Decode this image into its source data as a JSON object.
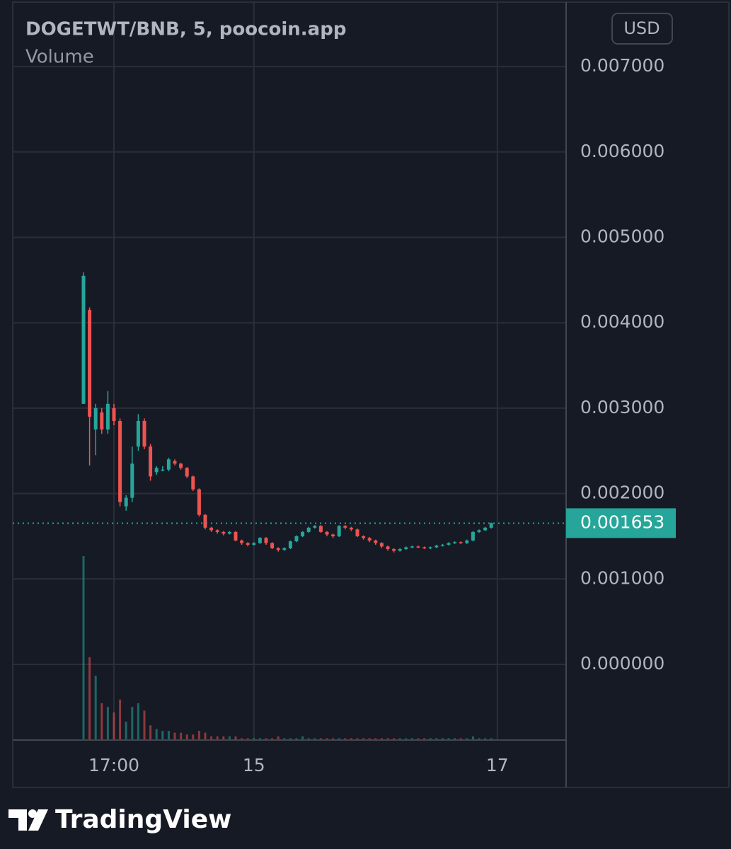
{
  "chart_data": {
    "type": "candlestick",
    "title": "DOGETWT/BNB, 5, poocoin.app",
    "currency": "USD",
    "brand": "TradingView",
    "colors": {
      "up": "#26a69a",
      "down": "#ef5350"
    },
    "grid": true,
    "categories": [
      null,
      null,
      null,
      null,
      null,
      "17:00",
      null,
      null,
      null,
      null,
      null,
      null,
      null,
      null,
      null,
      null,
      null,
      null,
      null,
      null,
      null,
      null,
      null,
      null,
      null,
      null,
      null,
      null,
      "15",
      null,
      null,
      null,
      null,
      null,
      null,
      null,
      null,
      null,
      null,
      null,
      null,
      null,
      null,
      null,
      null,
      null,
      null,
      null,
      null,
      null,
      null,
      null,
      null,
      null,
      null,
      null,
      null,
      null,
      null,
      null,
      null,
      null,
      null,
      null,
      null,
      null,
      null,
      null,
      "17"
    ],
    "open": [
      0.00305,
      0.00415,
      0.00275,
      0.00295,
      0.00275,
      0.003,
      0.00285,
      0.00185,
      0.00195,
      0.00255,
      0.00285,
      0.00255,
      0.00225,
      0.00228,
      0.00228,
      0.00238,
      0.00235,
      0.0023,
      0.0022,
      0.00205,
      0.00175,
      0.0016,
      0.00157,
      0.00155,
      0.00153,
      0.00155,
      0.00145,
      0.00142,
      0.0014,
      0.00142,
      0.00148,
      0.00142,
      0.00136,
      0.00134,
      0.00136,
      0.00144,
      0.0015,
      0.00155,
      0.0016,
      0.00162,
      0.00155,
      0.00152,
      0.0015,
      0.00162,
      0.0016,
      0.00158,
      0.0015,
      0.00148,
      0.00145,
      0.00142,
      0.00138,
      0.00135,
      0.00133,
      0.00135,
      0.00137,
      0.00138,
      0.00137,
      0.00136,
      0.00137,
      0.00139,
      0.0014,
      0.00142,
      0.00143,
      0.00142,
      0.00145,
      0.00155,
      0.00157,
      0.0016,
      null
    ],
    "high": [
      0.00459,
      0.00418,
      0.00305,
      0.003,
      0.0032,
      0.00305,
      0.00288,
      0.00198,
      0.00255,
      0.00293,
      0.00288,
      0.00258,
      0.00232,
      0.00232,
      0.00242,
      0.0024,
      0.00236,
      0.00231,
      0.00221,
      0.00206,
      0.00176,
      0.00161,
      0.00158,
      0.00156,
      0.00156,
      0.00156,
      0.00146,
      0.00143,
      0.00143,
      0.00149,
      0.00149,
      0.00143,
      0.00137,
      0.00137,
      0.00145,
      0.00151,
      0.00156,
      0.00161,
      0.00163,
      0.00163,
      0.00156,
      0.00153,
      0.00163,
      0.00163,
      0.00161,
      0.00159,
      0.00151,
      0.00149,
      0.00146,
      0.00143,
      0.00139,
      0.00136,
      0.00136,
      0.00138,
      0.00139,
      0.00139,
      0.00138,
      0.00138,
      0.0014,
      0.00141,
      0.00143,
      0.00144,
      0.00144,
      0.00146,
      0.00156,
      0.00158,
      0.00161,
      0.00166,
      null
    ],
    "low": [
      0.00305,
      0.00233,
      0.00245,
      0.0027,
      0.0027,
      0.0028,
      0.00185,
      0.0018,
      0.0019,
      0.0025,
      0.00252,
      0.00215,
      0.00222,
      0.00226,
      0.00226,
      0.00233,
      0.00228,
      0.00218,
      0.00203,
      0.00173,
      0.00158,
      0.00155,
      0.00153,
      0.00151,
      0.00152,
      0.00144,
      0.0014,
      0.00138,
      0.00139,
      0.00141,
      0.0014,
      0.00135,
      0.00132,
      0.00133,
      0.00135,
      0.00143,
      0.00149,
      0.00154,
      0.00159,
      0.00154,
      0.0015,
      0.00148,
      0.00149,
      0.00158,
      0.00156,
      0.00149,
      0.00146,
      0.00143,
      0.0014,
      0.00136,
      0.00133,
      0.00131,
      0.00132,
      0.00134,
      0.00136,
      0.00136,
      0.00135,
      0.00135,
      0.00136,
      0.00138,
      0.00139,
      0.00141,
      0.00141,
      0.00141,
      0.00144,
      0.00154,
      0.00156,
      0.00159,
      null
    ],
    "close": [
      0.00455,
      0.0029,
      0.003,
      0.00275,
      0.00305,
      0.00285,
      0.0019,
      0.00195,
      0.00235,
      0.00285,
      0.00255,
      0.0022,
      0.0023,
      0.00228,
      0.0024,
      0.00235,
      0.0023,
      0.0022,
      0.00205,
      0.00175,
      0.0016,
      0.00157,
      0.00155,
      0.00153,
      0.00155,
      0.00145,
      0.00142,
      0.0014,
      0.00142,
      0.00148,
      0.00142,
      0.00136,
      0.00134,
      0.00136,
      0.00144,
      0.0015,
      0.00155,
      0.0016,
      0.00162,
      0.00155,
      0.00152,
      0.0015,
      0.00162,
      0.0016,
      0.00158,
      0.0015,
      0.00148,
      0.00145,
      0.00142,
      0.00138,
      0.00135,
      0.00133,
      0.00135,
      0.00137,
      0.00138,
      0.00137,
      0.00136,
      0.00137,
      0.00139,
      0.0014,
      0.00142,
      0.00143,
      0.00142,
      0.00145,
      0.00155,
      0.00157,
      0.0016,
      0.001653,
      null
    ],
    "volume": {
      "name": "Volume",
      "values": [
        100,
        45,
        35,
        20,
        18,
        15,
        22,
        10,
        18,
        20,
        16,
        8,
        6,
        5,
        5,
        4,
        4,
        3,
        3,
        5,
        4,
        2,
        2,
        2,
        2,
        2,
        1,
        1,
        1,
        1,
        1,
        1,
        2,
        1,
        1,
        1,
        2,
        1,
        1,
        1,
        1,
        1,
        1,
        1,
        1,
        1,
        1,
        1,
        1,
        1,
        1,
        1,
        1,
        1,
        1,
        1,
        1,
        1,
        1,
        1,
        1,
        1,
        1,
        1,
        2,
        1,
        1,
        1,
        null
      ]
    },
    "last_price": 0.001653,
    "ylim": [
      -0.000887,
      0.007755
    ],
    "yticks": [
      {
        "value": 0.007,
        "label": "0.007000"
      },
      {
        "value": 0.006,
        "label": "0.006000"
      },
      {
        "value": 0.005,
        "label": "0.005000"
      },
      {
        "value": 0.004,
        "label": "0.004000"
      },
      {
        "value": 0.003,
        "label": "0.003000"
      },
      {
        "value": 0.002,
        "label": "0.002000"
      },
      {
        "value": 0.001,
        "label": "0.001000"
      },
      {
        "value": 0,
        "label": "0.000000"
      }
    ]
  }
}
